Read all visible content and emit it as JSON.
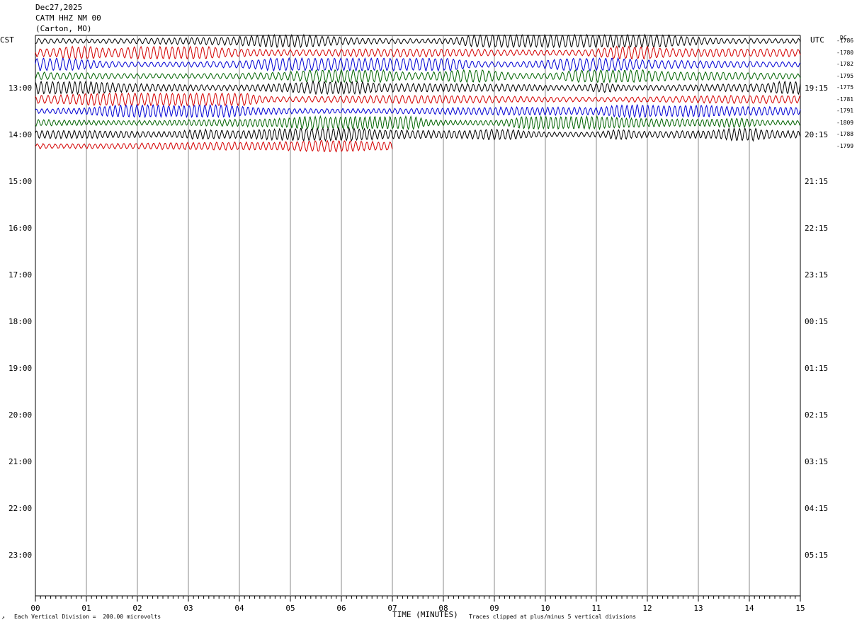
{
  "header": {
    "date": "Dec27,2025",
    "station": "CATM HHZ NM 00",
    "location": "(Carton, MO)"
  },
  "labels": {
    "left_tz": "CST",
    "right_tz": "UTC",
    "dc": "DC",
    "xlabel": "TIME (MINUTES)",
    "scale_note": "Each Vertical Division =  200.00 microvolts",
    "clip_note": "Traces clipped at plus/minus 5 vertical divisions"
  },
  "colors": {
    "trace_cycle": [
      "#000000",
      "#d40000",
      "#0000d4",
      "#006400"
    ],
    "gridline": "#888888"
  },
  "chart_data": {
    "type": "line",
    "x_ticks": [
      "00",
      "01",
      "02",
      "03",
      "04",
      "05",
      "06",
      "07",
      "08",
      "09",
      "10",
      "11",
      "12",
      "13",
      "14",
      "15"
    ],
    "xlim": [
      0,
      15
    ],
    "left_hour_labels": [
      "13:00",
      "14:00",
      "15:00",
      "16:00",
      "17:00",
      "18:00",
      "19:00",
      "20:00",
      "21:00",
      "22:00",
      "23:00"
    ],
    "right_hour_labels": [
      "19:15",
      "20:15",
      "21:15",
      "22:15",
      "23:15",
      "00:15",
      "01:15",
      "02:15",
      "03:15",
      "04:15",
      "05:15"
    ],
    "traces": [
      {
        "row": 0,
        "dc": "-1786",
        "end_minute": 15
      },
      {
        "row": 1,
        "dc": "-1780",
        "end_minute": 15
      },
      {
        "row": 2,
        "dc": "-1782",
        "end_minute": 15
      },
      {
        "row": 3,
        "dc": "-1795",
        "end_minute": 15
      },
      {
        "row": 4,
        "dc": "-1775",
        "end_minute": 15
      },
      {
        "row": 5,
        "dc": "-1781",
        "end_minute": 15
      },
      {
        "row": 6,
        "dc": "-1791",
        "end_minute": 15
      },
      {
        "row": 7,
        "dc": "-1809",
        "end_minute": 15
      },
      {
        "row": 8,
        "dc": "-1788",
        "end_minute": 15
      },
      {
        "row": 9,
        "dc": "-1799",
        "end_minute": 7
      }
    ]
  }
}
